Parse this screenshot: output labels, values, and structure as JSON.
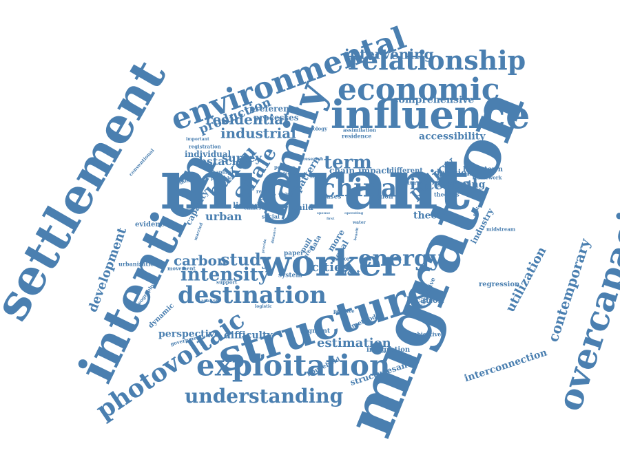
{
  "color": "#4a7fb0",
  "words": [
    {
      "text": "migrant"
    },
    {
      "text": "migration"
    },
    {
      "text": "settlement"
    },
    {
      "text": "intention"
    },
    {
      "text": "environmental"
    },
    {
      "text": "family"
    },
    {
      "text": "overcapacity"
    },
    {
      "text": "structure"
    },
    {
      "text": "influence"
    },
    {
      "text": "economic"
    },
    {
      "text": "relationship"
    },
    {
      "text": "worker"
    },
    {
      "text": "exploitation"
    },
    {
      "text": "destination"
    },
    {
      "text": "photovoltaic"
    },
    {
      "text": "understanding"
    },
    {
      "text": "china"
    },
    {
      "text": "energy"
    },
    {
      "text": "term"
    },
    {
      "text": "Shale"
    },
    {
      "text": "hukou"
    },
    {
      "text": "policy"
    },
    {
      "text": "internal"
    },
    {
      "text": "intensity"
    },
    {
      "text": "study"
    },
    {
      "text": "intervening"
    },
    {
      "text": "industrial"
    },
    {
      "text": "residential"
    },
    {
      "text": "production"
    },
    {
      "text": "contemporary"
    },
    {
      "text": "development"
    },
    {
      "text": "utilization"
    },
    {
      "text": "estimation"
    },
    {
      "text": "carbon"
    },
    {
      "text": "cities"
    },
    {
      "text": "interconnection"
    },
    {
      "text": "perspective"
    },
    {
      "text": "difficulty"
    },
    {
      "text": "comprehensive"
    },
    {
      "text": "accessibility"
    },
    {
      "text": "exploring"
    },
    {
      "text": "theory"
    },
    {
      "text": "urban"
    },
    {
      "text": "survey"
    },
    {
      "text": "obstacle"
    },
    {
      "text": "pattern"
    },
    {
      "text": "processes"
    },
    {
      "text": "preference"
    },
    {
      "text": "location"
    },
    {
      "text": "structuresand"
    },
    {
      "text": "impact"
    },
    {
      "text": "chain"
    },
    {
      "text": "decision"
    },
    {
      "text": "industry"
    },
    {
      "text": "capacity"
    },
    {
      "text": "individual"
    },
    {
      "text": "hometown"
    },
    {
      "text": "different"
    },
    {
      "text": "regression"
    },
    {
      "text": "integration"
    },
    {
      "text": "linked"
    },
    {
      "text": "effect"
    },
    {
      "text": "region"
    },
    {
      "text": "return"
    },
    {
      "text": "child"
    },
    {
      "text": "more"
    },
    {
      "text": "local"
    },
    {
      "text": "evidence"
    },
    {
      "text": "urbanization"
    },
    {
      "text": "dynamic"
    },
    {
      "text": "geography"
    },
    {
      "text": "government"
    },
    {
      "text": "household"
    },
    {
      "text": "method"
    },
    {
      "text": "segment"
    },
    {
      "text": "subjective"
    },
    {
      "text": "cognitive"
    },
    {
      "text": "theories"
    },
    {
      "text": "midstream"
    },
    {
      "text": "exploration"
    },
    {
      "text": "framework"
    },
    {
      "text": "assimilation"
    },
    {
      "text": "residence"
    },
    {
      "text": "technology"
    },
    {
      "text": "research"
    },
    {
      "text": "conventional"
    },
    {
      "text": "important"
    },
    {
      "text": "registration"
    },
    {
      "text": "shaping"
    },
    {
      "text": "principle"
    },
    {
      "text": "migrate"
    },
    {
      "text": "married"
    },
    {
      "text": "chinese"
    },
    {
      "text": "result"
    },
    {
      "text": "couple"
    },
    {
      "text": "social"
    },
    {
      "text": "policies"
    },
    {
      "text": "related"
    },
    {
      "text": "biases"
    },
    {
      "text": "paper"
    },
    {
      "text": "pull"
    },
    {
      "text": "area"
    },
    {
      "text": "data"
    },
    {
      "text": "factor"
    },
    {
      "text": "system"
    },
    {
      "text": "movement"
    },
    {
      "text": "support"
    },
    {
      "text": "analysis"
    },
    {
      "text": "logistic"
    },
    {
      "text": "positive"
    },
    {
      "text": "live"
    },
    {
      "text": "water"
    },
    {
      "text": "first"
    },
    {
      "text": "spouse"
    },
    {
      "text": "operating"
    },
    {
      "text": "model"
    },
    {
      "text": "provide"
    },
    {
      "text": "distance"
    },
    {
      "text": "benefit"
    }
  ]
}
